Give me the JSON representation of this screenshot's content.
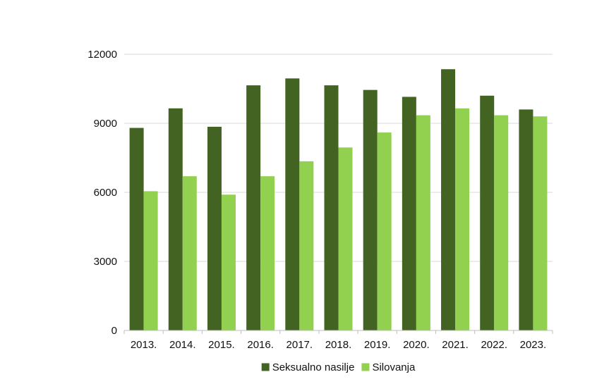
{
  "chart_data": {
    "type": "bar",
    "categories": [
      "2013.",
      "2014.",
      "2015.",
      "2016.",
      "2017.",
      "2018.",
      "2019.",
      "2020.",
      "2021.",
      "2022.",
      "2023."
    ],
    "series": [
      {
        "name": "Seksualno nasilje",
        "color": "#436322",
        "values": [
          8800,
          9650,
          8850,
          10650,
          10950,
          10650,
          10450,
          10150,
          11350,
          10200,
          9600
        ]
      },
      {
        "name": "Silovanja",
        "color": "#92d050",
        "values": [
          6050,
          6700,
          5900,
          6700,
          7350,
          7950,
          8600,
          9350,
          9650,
          9350,
          9300
        ]
      }
    ],
    "yticks": [
      "0",
      "3000",
      "6000",
      "9000",
      "12000"
    ],
    "ylim": [
      0,
      12000
    ],
    "grid": true,
    "legend_position": "bottom",
    "title": "",
    "xlabel": "",
    "ylabel": ""
  }
}
